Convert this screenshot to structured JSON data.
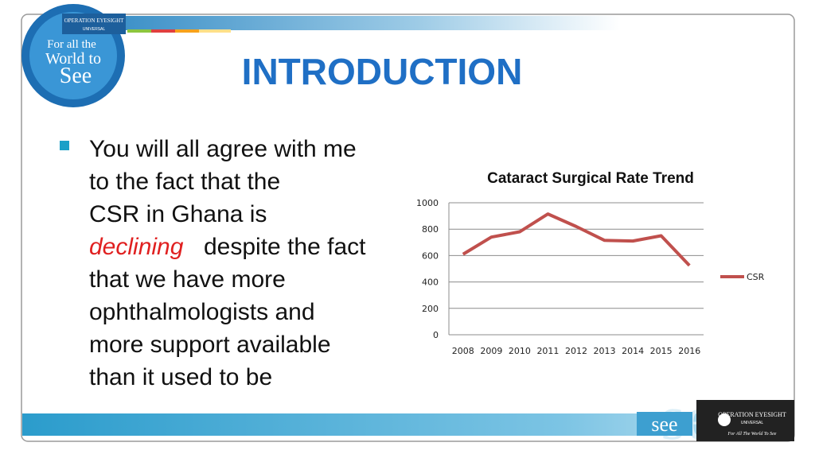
{
  "slide": {
    "title": "INTRODUCTION",
    "bullet": {
      "lines": [
        "You will all agree with me",
        "to the fact that the",
        "CSR in Ghana is",
        "despite the fact",
        "that we have more",
        "ophthalmologists and",
        "more support available",
        "than it used to be"
      ],
      "emphasis": "declining"
    }
  },
  "logo": {
    "org": "OPERATION EYESIGHT",
    "org_sub": "UNIVERSAL",
    "badge_top": "For all the",
    "badge_mid": "World to",
    "badge_bottom": "See"
  },
  "footer": {
    "word": "see",
    "org": "OPERATION EYESIGHT",
    "org_sub": "UNIVERSAL",
    "tagline": "For All The World To See"
  },
  "chart_data": {
    "type": "line",
    "title": "Cataract Surgical Rate Trend",
    "categories": [
      "2008",
      "2009",
      "2010",
      "2011",
      "2012",
      "2013",
      "2014",
      "2015",
      "2016"
    ],
    "series": [
      {
        "name": "CSR",
        "color": "#c0504d",
        "values": [
          610,
          740,
          780,
          915,
          820,
          715,
          710,
          750,
          525
        ]
      }
    ],
    "ylim": [
      0,
      1000
    ],
    "yticks": [
      0,
      200,
      400,
      600,
      800,
      1000
    ],
    "grid": true,
    "legend": "right"
  }
}
